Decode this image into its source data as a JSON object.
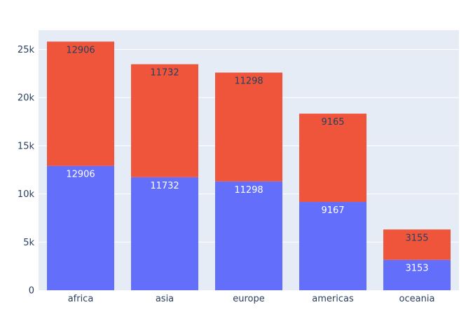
{
  "chart_data": {
    "type": "bar",
    "stacked": true,
    "categories": [
      "africa",
      "asia",
      "europe",
      "americas",
      "oceania"
    ],
    "series": [
      {
        "values": [
          12906,
          11732,
          11298,
          9167,
          3153
        ],
        "color": "#636efa",
        "label_color": "#ffffff"
      },
      {
        "values": [
          12906,
          11732,
          11298,
          9165,
          3155
        ],
        "color": "#ef553b",
        "label_color": "#2a3f5f"
      }
    ],
    "yticks": [
      0,
      5000,
      10000,
      15000,
      20000,
      25000
    ],
    "ytick_labels": [
      "0",
      "5k",
      "10k",
      "15k",
      "20k",
      "25k"
    ],
    "ylim": [
      0,
      27000
    ],
    "grid": true,
    "plot_background": "#e5ecf6",
    "gridline_color": "#ffffff",
    "text_color": "#2a3f5f",
    "title": "",
    "xlabel": "",
    "ylabel": ""
  }
}
